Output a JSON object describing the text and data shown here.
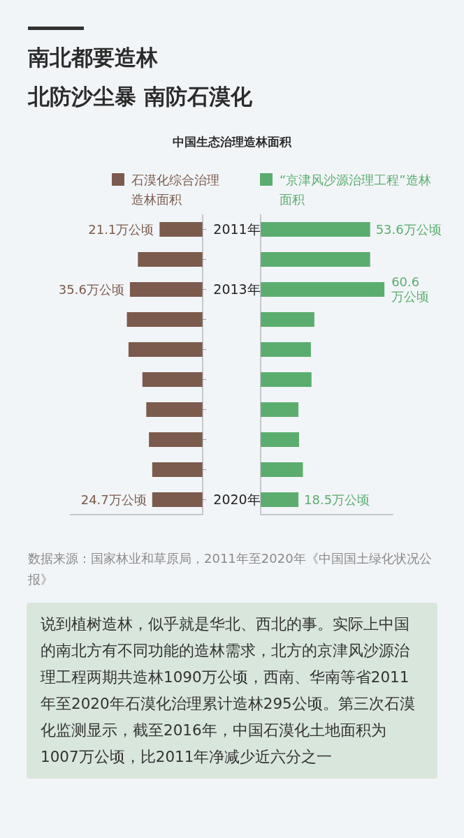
{
  "chart_data": [
    {
      "type": "bar",
      "orientation": "horizontal",
      "title": "中国生态治理造林面积",
      "annotations": [
        "南北都要造林",
        "北防沙尘暴 南防石漠化"
      ],
      "categories": [
        "2011年",
        null,
        "2013年",
        null,
        null,
        null,
        null,
        null,
        null,
        "2020年"
      ],
      "series": [
        {
          "name": "石漠化综合治理造林面积",
          "color": "#7b5b4d",
          "values": [
            21.1,
            31.7,
            35.6,
            37.1,
            36.3,
            29.5,
            27.6,
            26.3,
            24.7,
            24.7
          ],
          "value_labels": [
            "21.1万公顷",
            null,
            "35.6万公顷",
            null,
            null,
            null,
            null,
            null,
            null,
            "24.7万公顷"
          ]
        }
      ],
      "xlim": [
        65,
        0
      ],
      "tick_labels": "y",
      "legend": "top",
      "grid": false
    },
    {
      "type": "bar",
      "orientation": "horizontal",
      "annotations": [
        "数据来源：国家林业和草原局，2011年至2020年《中国国土绿化状况公报》",
        "说到植树造林，似乎就是华北、西北的事。实际上中国的南北方有不同功能的造林需求，北方的京津风沙源治理工程两期共造林1090万公顷，西南、华南等省2011年至2020年石漠化治理累计造林295公顷。第三次石漠化监测显示，截至2016年，中国石漠化土地面积为1007万公顷，比2011年净减少近六分之一"
      ],
      "categories": [
        null,
        null,
        null,
        null,
        null,
        null,
        null,
        null,
        null,
        null
      ],
      "series": [
        {
          "name": "“京津风沙源治理工程”造林面积",
          "color": "#5bad6f",
          "values": [
            53.6,
            53.6,
            60.6,
            26.3,
            24.6,
            24.9,
            18.5,
            18.8,
            20.7,
            18.5
          ],
          "value_labels": [
            "53.6万公顷",
            null,
            "60.6万公顷",
            null,
            null,
            null,
            null,
            null,
            null,
            "18.5万公顷"
          ]
        }
      ],
      "xlim": [
        0,
        65
      ],
      "tick_labels": false,
      "legend": "top",
      "grid": false
    }
  ]
}
